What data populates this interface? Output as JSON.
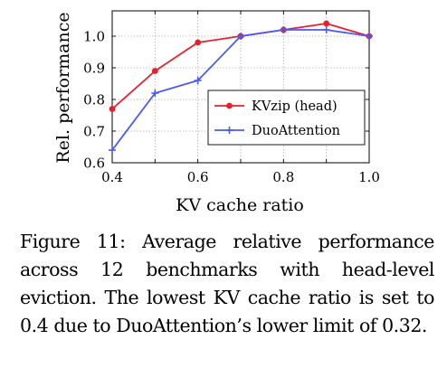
{
  "chart_data": {
    "type": "line",
    "title": "",
    "xlabel": "KV cache ratio",
    "ylabel": "Rel. performance",
    "x": [
      0.4,
      0.5,
      0.6,
      0.7,
      0.8,
      0.9,
      1.0
    ],
    "xlim": [
      0.4,
      1.0
    ],
    "ylim": [
      0.6,
      1.08
    ],
    "xticks": [
      "0.4",
      "0.6",
      "0.8",
      "1.0"
    ],
    "yticks": [
      "0.6",
      "0.7",
      "0.8",
      "0.9",
      "1.0"
    ],
    "grid": true,
    "legend_position": "right",
    "series": [
      {
        "name": "KVzip (head)",
        "color": "#e8202a",
        "marker": "circle",
        "values": [
          0.77,
          0.89,
          0.98,
          1.0,
          1.02,
          1.04,
          1.0
        ]
      },
      {
        "name": "DuoAttention",
        "color": "#4a5bf0",
        "marker": "plus",
        "values": [
          0.64,
          0.82,
          0.86,
          1.0,
          1.02,
          1.02,
          1.0
        ]
      }
    ]
  },
  "caption": {
    "text": "Figure 11: Average relative performance across 12 benchmarks with head-level eviction. The lowest KV cache ratio is set to 0.4 due to DuoAttention’s lower limit of 0.32."
  }
}
